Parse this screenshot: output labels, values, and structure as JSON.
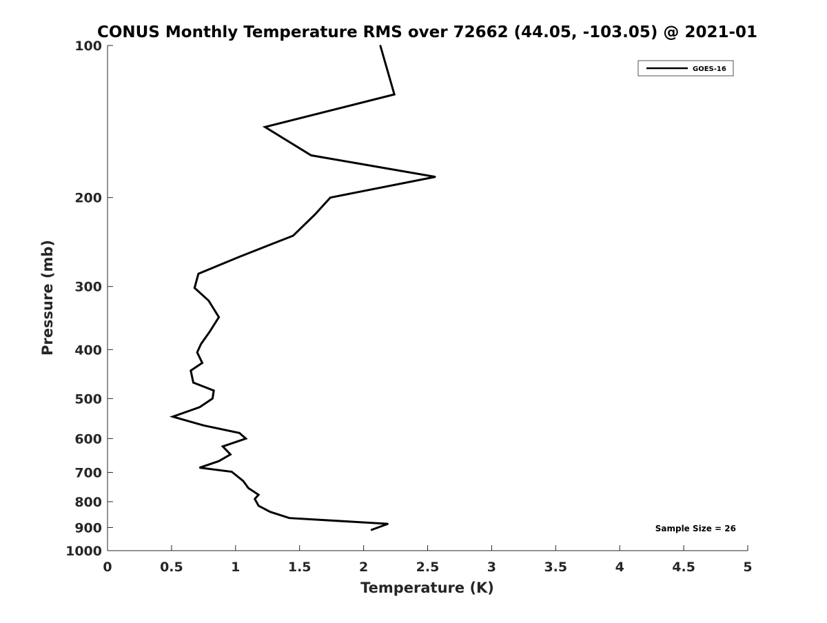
{
  "chart_data": {
    "type": "line",
    "title": "CONUS Monthly Temperature RMS over 72662 (44.05, -103.05) @ 2021-01",
    "xlabel": "Temperature (K)",
    "ylabel": "Pressure (mb)",
    "xlim": [
      0,
      5
    ],
    "ylim": [
      100,
      1000
    ],
    "y_scale": "log",
    "y_reversed": true,
    "grid": false,
    "legend_position": "top-right",
    "x_ticks": [
      0,
      0.5,
      1,
      1.5,
      2,
      2.5,
      3,
      3.5,
      4,
      4.5,
      5
    ],
    "x_tick_labels": [
      "0",
      "0.5",
      "1",
      "1.5",
      "2",
      "2.5",
      "3",
      "3.5",
      "4",
      "4.5",
      "5"
    ],
    "y_ticks": [
      100,
      200,
      300,
      400,
      500,
      600,
      700,
      800,
      900,
      1000
    ],
    "y_tick_labels": [
      "100",
      "200",
      "300",
      "400",
      "500",
      "600",
      "700",
      "800",
      "900",
      "1000"
    ],
    "series": [
      {
        "name": "GOES-16",
        "color": "#000000",
        "points": [
          {
            "x": 2.13,
            "p": 100
          },
          {
            "x": 2.24,
            "p": 125
          },
          {
            "x": 1.23,
            "p": 145
          },
          {
            "x": 1.59,
            "p": 165
          },
          {
            "x": 2.56,
            "p": 182
          },
          {
            "x": 1.74,
            "p": 200
          },
          {
            "x": 1.62,
            "p": 216
          },
          {
            "x": 1.45,
            "p": 238
          },
          {
            "x": 1.03,
            "p": 262
          },
          {
            "x": 0.71,
            "p": 283
          },
          {
            "x": 0.68,
            "p": 302
          },
          {
            "x": 0.79,
            "p": 320
          },
          {
            "x": 0.87,
            "p": 345
          },
          {
            "x": 0.8,
            "p": 368
          },
          {
            "x": 0.73,
            "p": 390
          },
          {
            "x": 0.7,
            "p": 405
          },
          {
            "x": 0.74,
            "p": 425
          },
          {
            "x": 0.65,
            "p": 440
          },
          {
            "x": 0.67,
            "p": 465
          },
          {
            "x": 0.83,
            "p": 482
          },
          {
            "x": 0.82,
            "p": 500
          },
          {
            "x": 0.72,
            "p": 520
          },
          {
            "x": 0.51,
            "p": 543
          },
          {
            "x": 0.75,
            "p": 565
          },
          {
            "x": 1.03,
            "p": 585
          },
          {
            "x": 1.08,
            "p": 600
          },
          {
            "x": 0.9,
            "p": 622
          },
          {
            "x": 0.96,
            "p": 645
          },
          {
            "x": 0.87,
            "p": 665
          },
          {
            "x": 0.72,
            "p": 685
          },
          {
            "x": 0.97,
            "p": 698
          },
          {
            "x": 1.06,
            "p": 728
          },
          {
            "x": 1.1,
            "p": 752
          },
          {
            "x": 1.18,
            "p": 775
          },
          {
            "x": 1.15,
            "p": 790
          },
          {
            "x": 1.18,
            "p": 815
          },
          {
            "x": 1.27,
            "p": 838
          },
          {
            "x": 1.42,
            "p": 862
          },
          {
            "x": 2.19,
            "p": 885
          },
          {
            "x": 2.06,
            "p": 910
          }
        ]
      }
    ],
    "annotations": [
      {
        "text": "Sample Size = 26",
        "position": "bottom-right"
      }
    ]
  }
}
